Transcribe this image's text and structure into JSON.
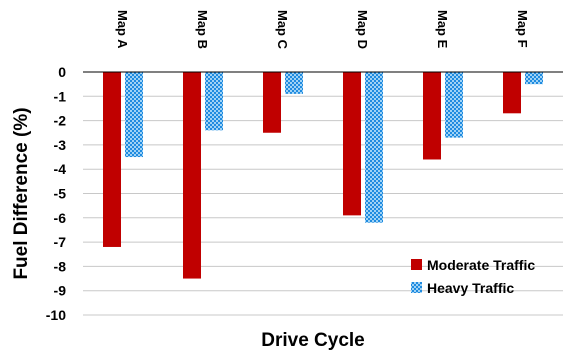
{
  "chart_data": {
    "type": "bar",
    "xlabel": "Drive Cycle",
    "ylabel": "Fuel Difference (%)",
    "categories": [
      "Map A",
      "Map B",
      "Map C",
      "Map D",
      "Map E",
      "Map F"
    ],
    "series": [
      {
        "name": "Moderate Traffic",
        "values": [
          -7.2,
          -8.5,
          -2.5,
          -5.9,
          -3.6,
          -1.7
        ],
        "color": "#c00000"
      },
      {
        "name": "Heavy Traffic",
        "values": [
          -3.5,
          -2.4,
          -0.9,
          -6.2,
          -2.7,
          -0.5
        ],
        "color": "#0070c0"
      }
    ],
    "ylim": [
      -10,
      0
    ],
    "yticks": [
      0,
      -1,
      -2,
      -3,
      -4,
      -5,
      -6,
      -7,
      -8,
      -9,
      -10
    ],
    "grid": true,
    "legend_position": "bottom-right",
    "category_label_position": "top"
  }
}
